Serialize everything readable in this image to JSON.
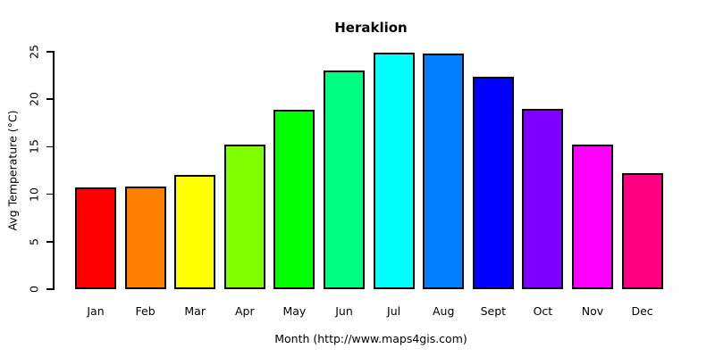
{
  "chart_data": {
    "type": "bar",
    "title": "Heraklion",
    "xlabel": "Month (http://www.maps4gis.com)",
    "ylabel": "Avg Temperature (°C)",
    "categories": [
      "Jan",
      "Feb",
      "Mar",
      "Apr",
      "May",
      "Jun",
      "Jul",
      "Aug",
      "Sept",
      "Oct",
      "Nov",
      "Dec"
    ],
    "series": [
      {
        "name": "Avg Temperature (°C)",
        "values": [
          10.7,
          10.8,
          12.0,
          15.2,
          18.9,
          23.0,
          24.9,
          24.8,
          22.4,
          19.0,
          15.2,
          12.2
        ]
      }
    ],
    "bar_colors": [
      "#FF0000",
      "#FF8000",
      "#FFFF00",
      "#80FF00",
      "#00FF00",
      "#00FF80",
      "#00FFFF",
      "#0080FF",
      "#0000FF",
      "#8000FF",
      "#FF00FF",
      "#FF0080"
    ],
    "bar_border_color": "#000000",
    "yticks": [
      0,
      5,
      10,
      15,
      20,
      25
    ],
    "ylim": [
      0,
      25
    ],
    "grid": false,
    "legend_position": "none",
    "background_color": "#FFFFFF",
    "text_color": "#000000"
  }
}
